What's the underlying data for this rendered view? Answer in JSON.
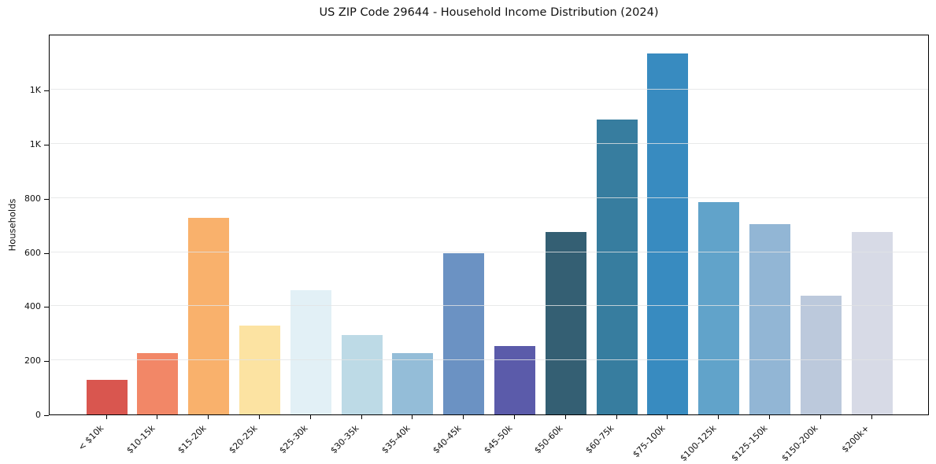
{
  "chart_data": {
    "type": "bar",
    "title": "US ZIP Code 29644 - Household Income Distribution (2024)",
    "xlabel": "",
    "ylabel": "Households",
    "categories": [
      "< $10k",
      "$10-15k",
      "$15-20k",
      "$20-25k",
      "$25-30k",
      "$30-35k",
      "$35-40k",
      "$40-45k",
      "$45-50k",
      "$50-60k",
      "$60-75k",
      "$75-100k",
      "$100-125k",
      "$125-150k",
      "$150-200k",
      "$200k+"
    ],
    "values": [
      127,
      228,
      727,
      330,
      460,
      293,
      228,
      595,
      252,
      675,
      1090,
      1335,
      785,
      705,
      438,
      675
    ],
    "bar_colors": [
      "#d9564f",
      "#f28767",
      "#f9b16c",
      "#fce3a2",
      "#e2f0f6",
      "#bddae6",
      "#94bdd8",
      "#6b92c3",
      "#5b5baa",
      "#345f73",
      "#377d9f",
      "#388bc0",
      "#61a3ca",
      "#92b6d5",
      "#bcc9dc",
      "#d7dae6"
    ],
    "ytick_values": [
      0,
      200,
      400,
      600,
      800,
      1000,
      1200
    ],
    "ytick_labels": [
      "0",
      "200",
      "400",
      "600",
      "800",
      "1K",
      "1K"
    ],
    "ylim": [
      0,
      1407
    ],
    "grid": "horizontal gridlines, light gray, drawn above bars",
    "legend": "none",
    "spine_color": "#000000",
    "background_color": "#ffffff"
  }
}
